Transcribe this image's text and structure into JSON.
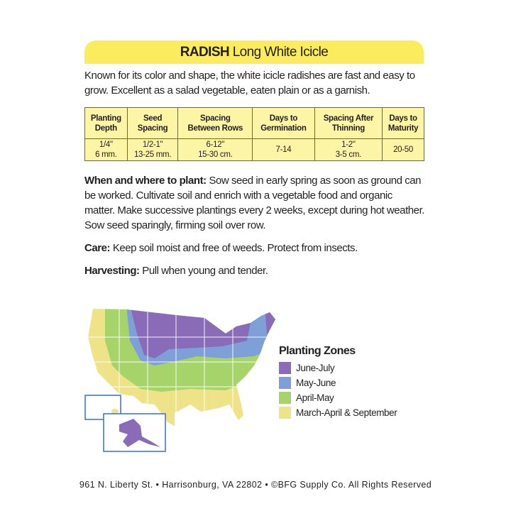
{
  "header": {
    "title_bold": "RADISH",
    "title_rest": "Long White Icicle"
  },
  "intro": "Known for its color and shape, the white icicle radishes are fast and easy to grow. Excellent as a salad vegetable, eaten plain or as a garnish.",
  "table": {
    "headers": [
      [
        "Planting",
        "Depth"
      ],
      [
        "Seed",
        "Spacing"
      ],
      [
        "Spacing",
        "Between Rows"
      ],
      [
        "Days to",
        "Germination"
      ],
      [
        "Spacing After",
        "Thinning"
      ],
      [
        "Days to",
        "Maturity"
      ]
    ],
    "values": [
      [
        "1/4\"",
        "6 mm."
      ],
      [
        "1/2-1\"",
        "13-25 mm."
      ],
      [
        "6-12\"",
        "15-30 cm."
      ],
      [
        "7-14",
        ""
      ],
      [
        "1-2\"",
        "3-5 cm."
      ],
      [
        "20-50",
        ""
      ]
    ]
  },
  "sections": [
    {
      "label": "When and where to plant:",
      "text": " Sow seed in early spring as soon as ground can be worked. Cultivate soil and enrich with a vegetable food and organic matter. Make successive plantings every 2 weeks, except during hot weather. Sow seed sparingly, firming soil over row."
    },
    {
      "label": "Care:",
      "text": " Keep soil moist and free of weeds. Protect from insects."
    },
    {
      "label": "Harvesting:",
      "text": " Pull when young and tender."
    }
  ],
  "legend": {
    "title": "Planting Zones",
    "items": [
      {
        "label": "June-July",
        "color": "#8a6bb8"
      },
      {
        "label": "May-June",
        "color": "#7f9fd8"
      },
      {
        "label": "April-May",
        "color": "#a6d46a"
      },
      {
        "label": "March-April & September",
        "color": "#efe38a"
      }
    ]
  },
  "footer": "961 N. Liberty St. • Harrisonburg, VA 22802 • ©BFG Supply Co. All Rights Reserved"
}
